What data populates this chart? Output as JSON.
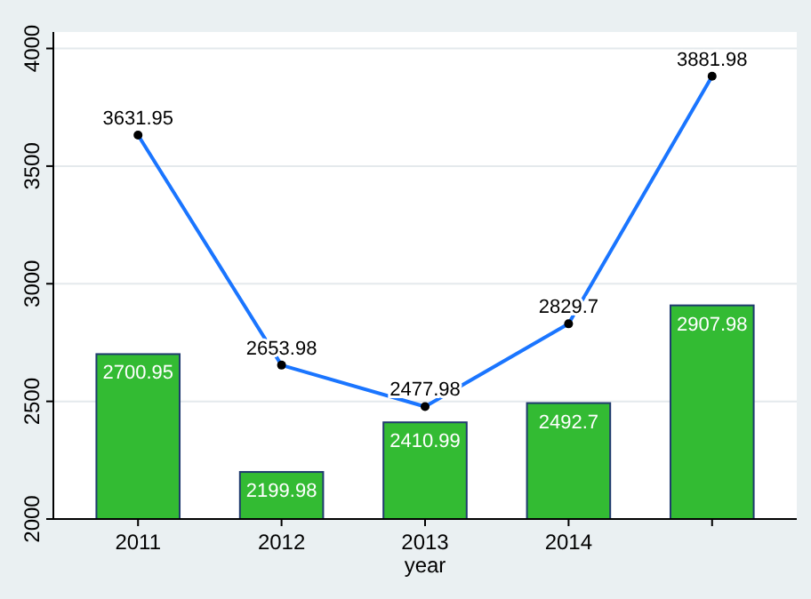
{
  "chart_data": {
    "type": "bar",
    "xlabel": "year",
    "categories": [
      "2011",
      "2012",
      "2013",
      "2014",
      null
    ],
    "series": [
      {
        "color": "#33bb33",
        "values": [
          2700.95,
          2199.98,
          2410.99,
          2492.7,
          2907.98
        ]
      },
      {
        "type": "line",
        "color": "#1a75ff",
        "values": [
          3631.95,
          2653.98,
          2477.98,
          2829.7,
          3881.98
        ]
      }
    ],
    "ylim": [
      2000,
      4070
    ],
    "yticks": [
      2000,
      2500,
      3000,
      3500,
      4000
    ],
    "grid": "y",
    "marker": "circle",
    "data_labels": true
  }
}
